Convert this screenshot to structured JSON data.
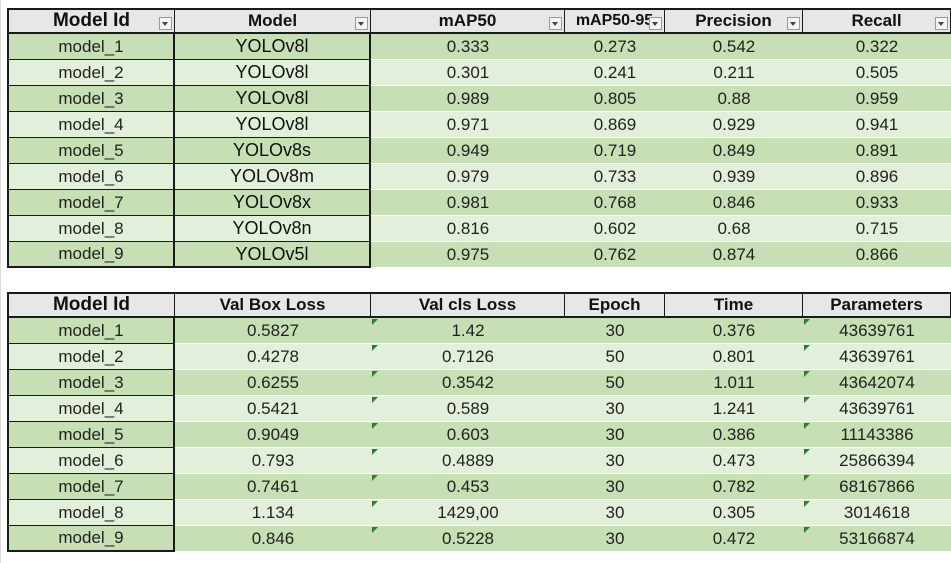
{
  "table1": {
    "headers": [
      "Model Id",
      "Model",
      "mAP50",
      "mAP50-95",
      "Precision",
      "Recall"
    ],
    "rows": [
      [
        "model_1",
        "YOLOv8l",
        "0.333",
        "0.273",
        "0.542",
        "0.322"
      ],
      [
        "model_2",
        "YOLOv8l",
        "0.301",
        "0.241",
        "0.211",
        "0.505"
      ],
      [
        "model_3",
        "YOLOv8l",
        "0.989",
        "0.805",
        "0.88",
        "0.959"
      ],
      [
        "model_4",
        "YOLOv8l",
        "0.971",
        "0.869",
        "0.929",
        "0.941"
      ],
      [
        "model_5",
        "YOLOv8s",
        "0.949",
        "0.719",
        "0.849",
        "0.891"
      ],
      [
        "model_6",
        "YOLOv8m",
        "0.979",
        "0.733",
        "0.939",
        "0.896"
      ],
      [
        "model_7",
        "YOLOv8x",
        "0.981",
        "0.768",
        "0.846",
        "0.933"
      ],
      [
        "model_8",
        "YOLOv8n",
        "0.816",
        "0.602",
        "0.68",
        "0.715"
      ],
      [
        "model_9",
        "YOLOv5l",
        "0.975",
        "0.762",
        "0.874",
        "0.866"
      ]
    ]
  },
  "table2": {
    "headers": [
      "Model Id",
      "Val Box Loss",
      "Val cls Loss",
      "Epoch",
      "Time",
      "Parameters"
    ],
    "rows": [
      [
        "model_1",
        "0.5827",
        "1.42",
        "30",
        "0.376",
        "43639761"
      ],
      [
        "model_2",
        "0.4278",
        "0.7126",
        "50",
        "0.801",
        "43639761"
      ],
      [
        "model_3",
        "0.6255",
        "0.3542",
        "50",
        "1.011",
        "43642074"
      ],
      [
        "model_4",
        "0.5421",
        "0.589",
        "30",
        "1.241",
        "43639761"
      ],
      [
        "model_5",
        "0.9049",
        "0.603",
        "30",
        "0.386",
        "11143386"
      ],
      [
        "model_6",
        "0.793",
        "0.4889",
        "30",
        "0.473",
        "25866394"
      ],
      [
        "model_7",
        "0.7461",
        "0.453",
        "30",
        "0.782",
        "68167866"
      ],
      [
        "model_8",
        "1.134",
        "1429,00",
        "30",
        "0.305",
        "3014618"
      ],
      [
        "model_9",
        "0.846",
        "0.5228",
        "30",
        "0.472",
        "53166874"
      ]
    ]
  },
  "colors": {
    "row_dark": "#c6dfb4",
    "row_light": "#e2efda",
    "header_bg": "#e7e7e7",
    "error_marker": "#2e7d32"
  },
  "icons": {
    "filter": "filter-dropdown-icon",
    "number_as_text": "error-indicator-icon"
  }
}
